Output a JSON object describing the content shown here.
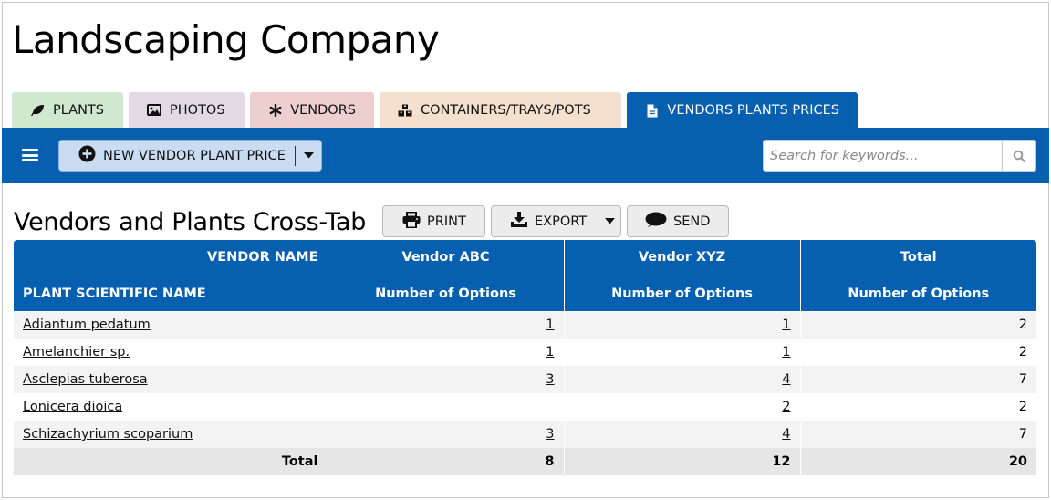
{
  "app": {
    "title": "Landscaping Company"
  },
  "tabs": [
    {
      "label": "PLANTS",
      "icon": "leaf-icon",
      "color": "#cfe8cf"
    },
    {
      "label": "PHOTOS",
      "icon": "image-icon",
      "color": "#e2d9e4"
    },
    {
      "label": "VENDORS",
      "icon": "asterisk-icon",
      "color": "#eccfce"
    },
    {
      "label": "CONTAINERS/TRAYS/POTS",
      "icon": "boxes-icon",
      "color": "#f4e0cd"
    },
    {
      "label": "VENDORS PLANTS PRICES",
      "icon": "document-icon",
      "color": "#075fb0",
      "active": true
    }
  ],
  "toolbar": {
    "new_button_label": "NEW VENDOR PLANT PRICE",
    "search_placeholder": "Search for keywords..."
  },
  "report": {
    "title": "Vendors and Plants Cross-Tab",
    "print_label": "PRINT",
    "export_label": "EXPORT",
    "send_label": "SEND"
  },
  "table": {
    "header_row1": [
      "VENDOR NAME",
      "Vendor ABC",
      "Vendor XYZ",
      "Total"
    ],
    "header_row2": [
      "PLANT SCIENTIFIC NAME",
      "Number of Options",
      "Number of Options",
      "Number of Options"
    ],
    "rows": [
      {
        "plant": "Adiantum pedatum",
        "abc": "1",
        "xyz": "1",
        "total": "2"
      },
      {
        "plant": "Amelanchier sp.",
        "abc": "1",
        "xyz": "1",
        "total": "2"
      },
      {
        "plant": "Asclepias tuberosa",
        "abc": "3",
        "xyz": "4",
        "total": "7"
      },
      {
        "plant": "Lonicera dioica",
        "abc": "",
        "xyz": "2",
        "total": "2"
      },
      {
        "plant": "Schizachyrium scoparium",
        "abc": "3",
        "xyz": "4",
        "total": "7"
      }
    ],
    "footer": {
      "label": "Total",
      "abc": "8",
      "xyz": "12",
      "total": "20"
    }
  },
  "colors": {
    "primary": "#075fb0",
    "button_light_blue": "#c9dcf2"
  }
}
